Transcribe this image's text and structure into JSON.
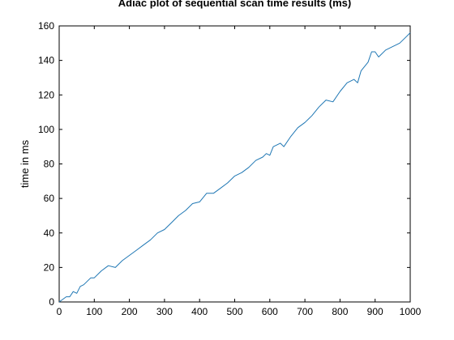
{
  "chart_data": {
    "type": "line",
    "title": "Adiac plot of sequential scan time results (ms)",
    "xlabel": "",
    "ylabel": "time in ms",
    "xlim": [
      0,
      1000
    ],
    "ylim": [
      0,
      160
    ],
    "x_ticks": [
      0,
      100,
      200,
      300,
      400,
      500,
      600,
      700,
      800,
      900,
      1000
    ],
    "y_ticks": [
      0,
      20,
      40,
      60,
      80,
      100,
      120,
      140,
      160
    ],
    "grid": false,
    "legend": "none",
    "line_color": "#1f77b4",
    "series": [
      {
        "x": [
          0,
          20,
          30,
          40,
          50,
          60,
          70,
          90,
          100,
          120,
          140,
          160,
          180,
          200,
          220,
          240,
          260,
          280,
          300,
          320,
          340,
          360,
          380,
          400,
          420,
          440,
          460,
          480,
          500,
          520,
          540,
          560,
          580,
          590,
          600,
          610,
          630,
          640,
          660,
          680,
          700,
          720,
          740,
          760,
          780,
          800,
          820,
          840,
          850,
          860,
          880,
          890,
          900,
          910,
          930,
          950,
          970,
          990,
          1000
        ],
        "y": [
          0,
          3,
          3,
          6,
          5,
          9,
          10,
          14,
          14,
          18,
          21,
          20,
          24,
          27,
          30,
          33,
          36,
          40,
          42,
          46,
          50,
          53,
          57,
          58,
          63,
          63,
          66,
          69,
          73,
          75,
          78,
          82,
          84,
          86,
          85,
          90,
          92,
          90,
          96,
          101,
          104,
          108,
          113,
          117,
          116,
          122,
          127,
          129,
          127,
          134,
          139,
          145,
          145,
          142,
          146,
          148,
          150,
          154,
          156
        ]
      }
    ]
  }
}
